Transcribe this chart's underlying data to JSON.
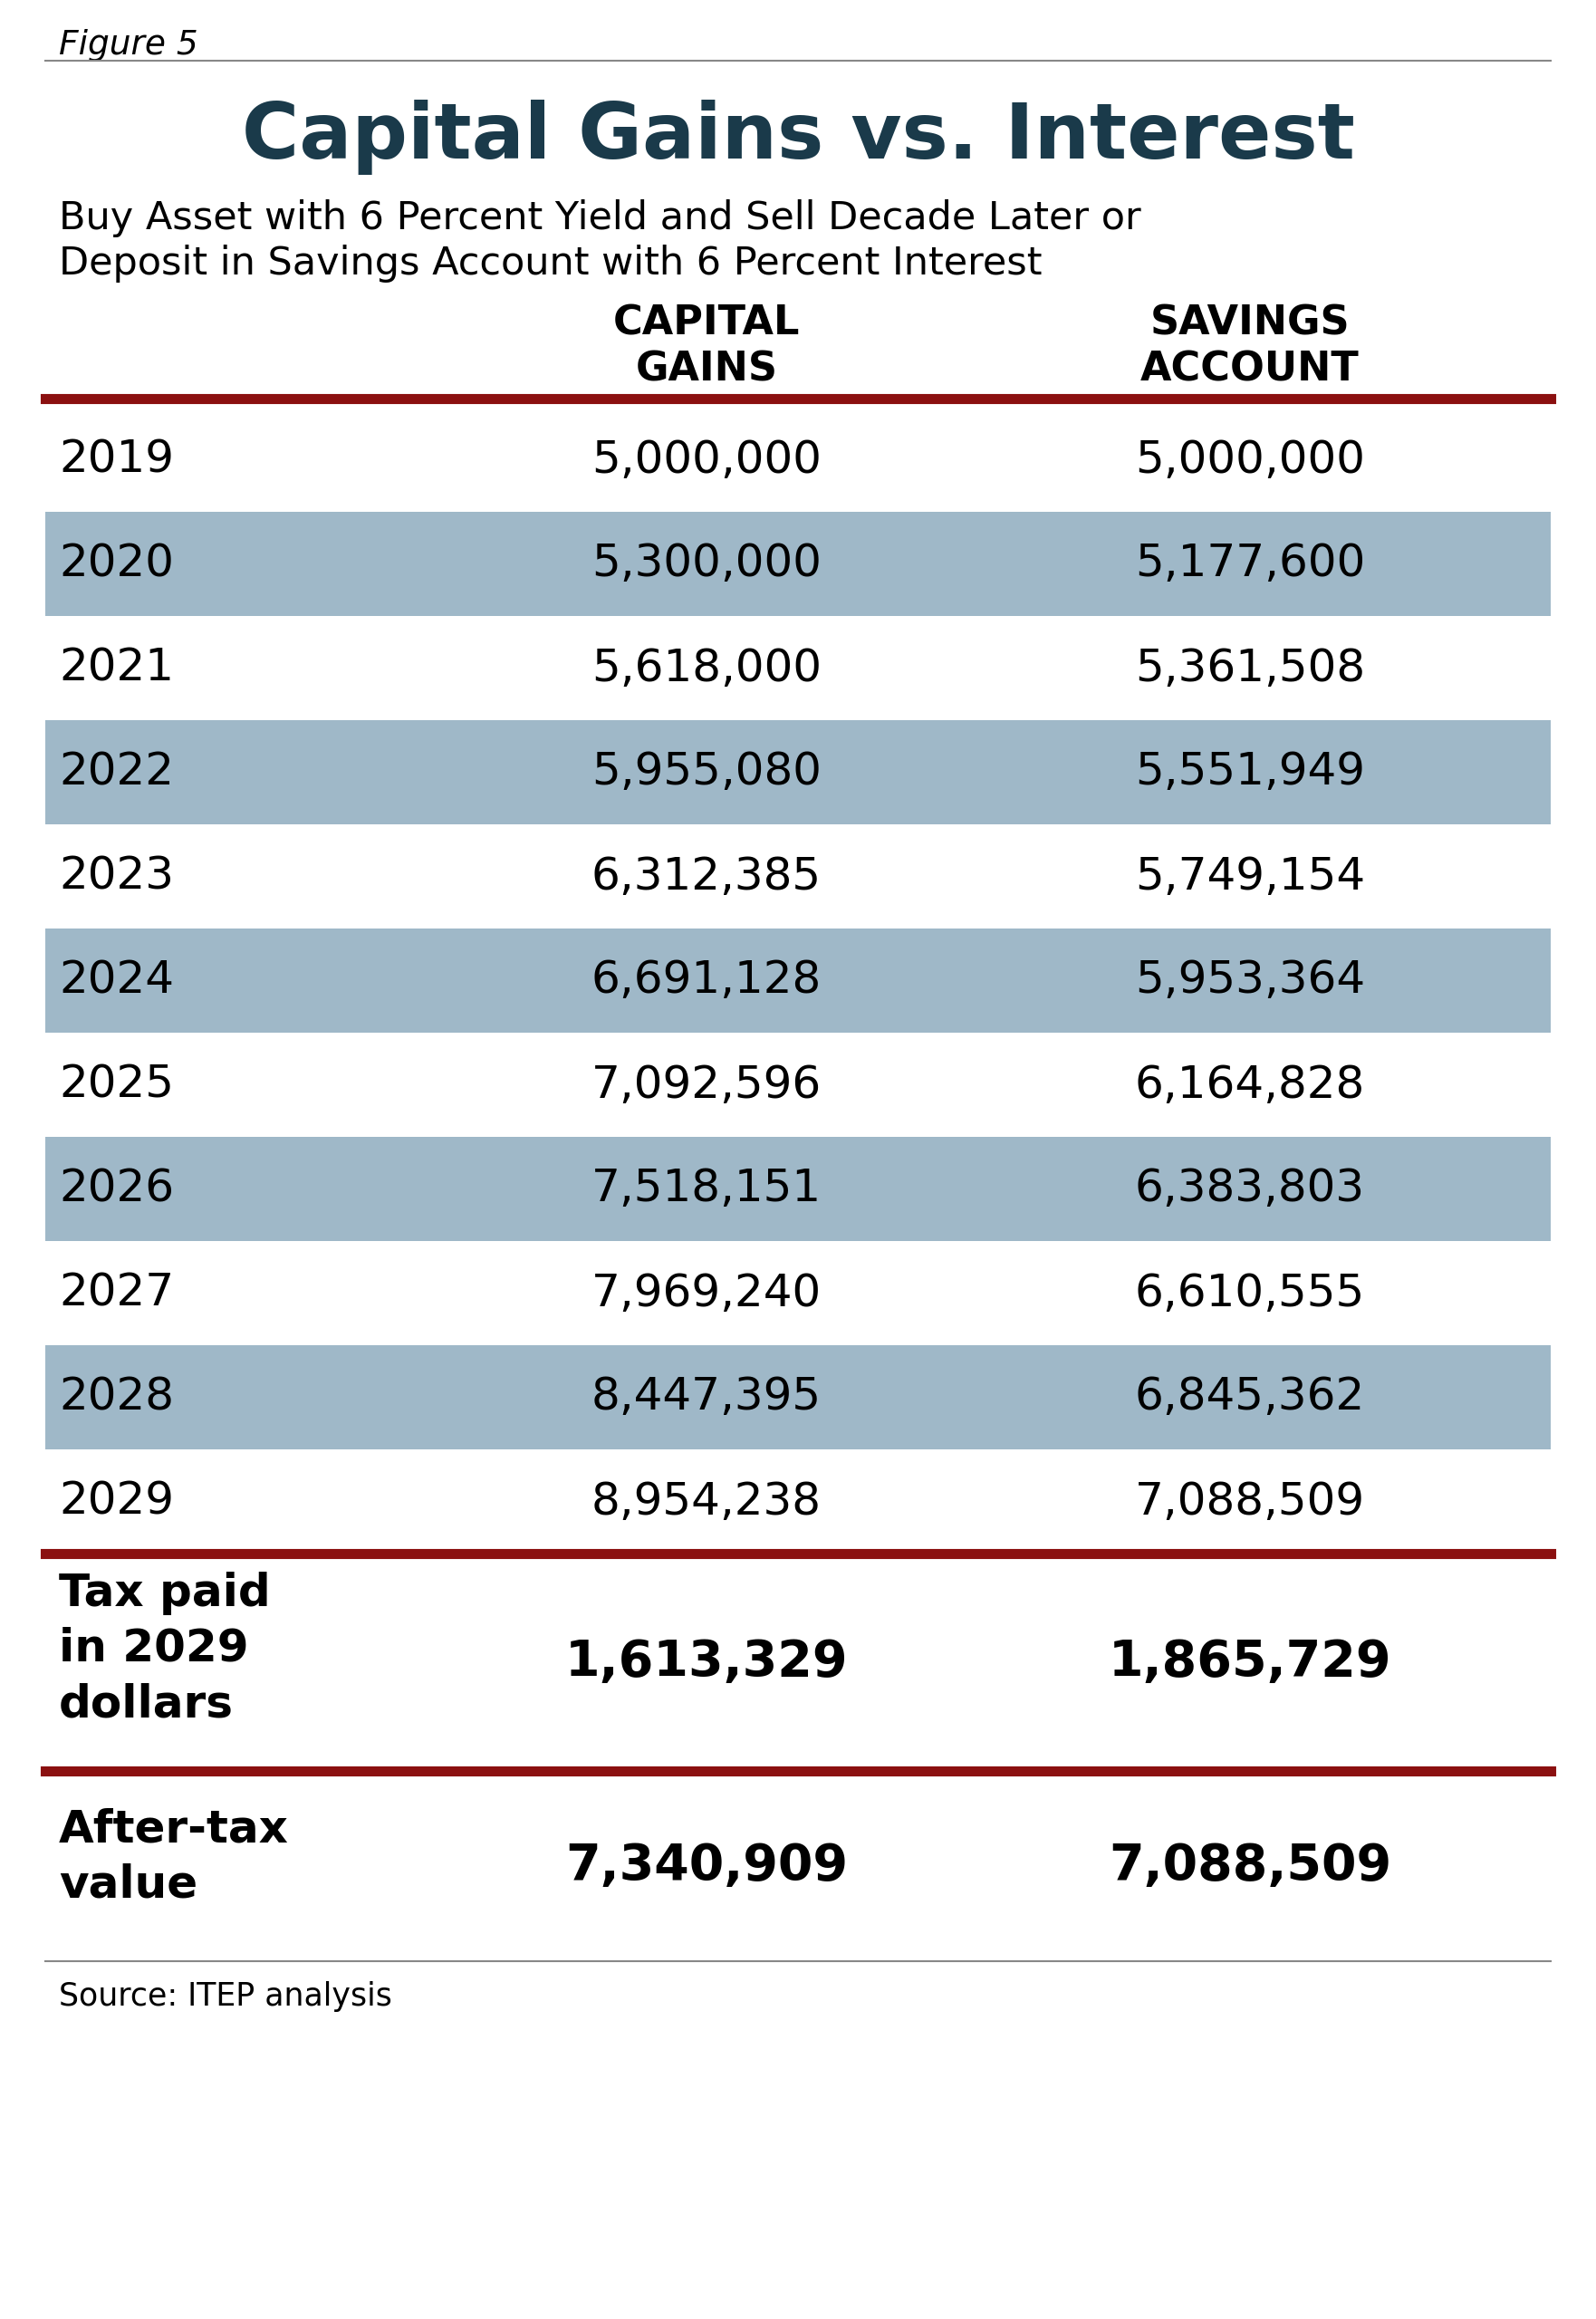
{
  "figure_label": "Figure 5",
  "title": "Capital Gains vs. Interest",
  "subtitle_line1": "Buy Asset with 6 Percent Yield and Sell Decade Later or",
  "subtitle_line2": "Deposit in Savings Account with 6 Percent Interest",
  "col1_header": "CAPITAL\nGAINS",
  "col2_header": "SAVINGS\nACCOUNT",
  "years": [
    "2019",
    "2020",
    "2021",
    "2022",
    "2023",
    "2024",
    "2025",
    "2026",
    "2027",
    "2028",
    "2029"
  ],
  "capital_gains": [
    "5,000,000",
    "5,300,000",
    "5,618,000",
    "5,955,080",
    "6,312,385",
    "6,691,128",
    "7,092,596",
    "7,518,151",
    "7,969,240",
    "8,447,395",
    "8,954,238"
  ],
  "savings_account": [
    "5,000,000",
    "5,177,600",
    "5,361,508",
    "5,551,949",
    "5,749,154",
    "5,953,364",
    "6,164,828",
    "6,383,803",
    "6,610,555",
    "6,845,362",
    "7,088,509"
  ],
  "shaded_rows": [
    1,
    3,
    5,
    7,
    9
  ],
  "tax_label": "Tax paid\nin 2029\ndollars",
  "tax_capital": "1,613,329",
  "tax_savings": "1,865,729",
  "aftertax_label": "After-tax\nvalue",
  "aftertax_capital": "7,340,909",
  "aftertax_savings": "7,088,509",
  "source": "Source: ITEP analysis",
  "bg_color": "#ffffff",
  "shade_color": "#9fb8c8",
  "title_color": "#1a3a4a",
  "dark_red": "#8b1010",
  "text_color": "#000000",
  "thin_line_color": "#888888"
}
